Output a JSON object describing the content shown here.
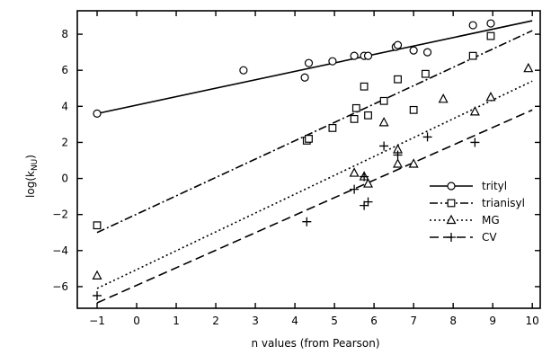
{
  "chart_data": {
    "type": "scatter",
    "title": "",
    "xlabel": "n values (from Pearson)",
    "ylabel": "log(k_NU)",
    "ylabel_main": "log(k",
    "ylabel_sub": "NU",
    "ylabel_close": ")",
    "xlim": [
      -1.5,
      10.2
    ],
    "ylim": [
      -7.2,
      9.3
    ],
    "xticks": [
      -1,
      0,
      1,
      2,
      3,
      4,
      5,
      6,
      7,
      8,
      9,
      10
    ],
    "yticks": [
      -6,
      -4,
      -2,
      0,
      2,
      4,
      6,
      8
    ],
    "grid": false,
    "legend_position": "right-middle",
    "series": [
      {
        "name": "trityl",
        "marker": "circle",
        "line_style": "solid",
        "points": [
          [
            -1,
            3.6
          ],
          [
            2.7,
            6.0
          ],
          [
            4.25,
            5.6
          ],
          [
            4.35,
            6.4
          ],
          [
            4.95,
            6.5
          ],
          [
            5.5,
            6.8
          ],
          [
            5.75,
            6.8
          ],
          [
            5.85,
            6.8
          ],
          [
            6.55,
            7.3
          ],
          [
            6.6,
            7.4
          ],
          [
            7.0,
            7.1
          ],
          [
            7.35,
            7.0
          ],
          [
            8.5,
            8.5
          ],
          [
            8.95,
            8.6
          ]
        ],
        "fit": [
          [
            -1,
            3.6
          ],
          [
            10,
            8.75
          ]
        ]
      },
      {
        "name": "trianisyl",
        "marker": "square",
        "line_style": "dashdot",
        "points": [
          [
            -1,
            -2.6
          ],
          [
            4.3,
            2.1
          ],
          [
            4.35,
            2.2
          ],
          [
            4.95,
            2.8
          ],
          [
            5.5,
            3.3
          ],
          [
            5.55,
            3.9
          ],
          [
            5.75,
            5.1
          ],
          [
            5.85,
            3.5
          ],
          [
            6.25,
            4.3
          ],
          [
            6.6,
            5.5
          ],
          [
            7.0,
            3.8
          ],
          [
            7.3,
            5.8
          ],
          [
            8.5,
            6.8
          ],
          [
            8.95,
            7.9
          ]
        ],
        "fit": [
          [
            -1,
            -3.0
          ],
          [
            10,
            8.2
          ]
        ]
      },
      {
        "name": "MG",
        "marker": "triangle",
        "line_style": "dotted",
        "points": [
          [
            -1,
            -5.4
          ],
          [
            5.5,
            0.3
          ],
          [
            5.75,
            0.1
          ],
          [
            5.85,
            -0.3
          ],
          [
            6.25,
            3.1
          ],
          [
            6.6,
            1.6
          ],
          [
            6.6,
            0.8
          ],
          [
            7.0,
            0.8
          ],
          [
            7.75,
            4.4
          ],
          [
            8.55,
            3.7
          ],
          [
            8.95,
            4.5
          ],
          [
            9.9,
            6.1
          ]
        ],
        "fit": [
          [
            -1,
            -6.1
          ],
          [
            10,
            5.4
          ]
        ]
      },
      {
        "name": "CV",
        "marker": "plus",
        "line_style": "dashed",
        "points": [
          [
            -1,
            -6.5
          ],
          [
            4.3,
            -2.4
          ],
          [
            5.5,
            -0.6
          ],
          [
            5.75,
            0.1
          ],
          [
            5.75,
            -1.5
          ],
          [
            5.85,
            -1.3
          ],
          [
            6.25,
            1.8
          ],
          [
            6.6,
            1.3
          ],
          [
            7.35,
            2.3
          ],
          [
            8.55,
            2.0
          ]
        ],
        "fit": [
          [
            -1,
            -6.9
          ],
          [
            10,
            3.8
          ]
        ]
      }
    ]
  }
}
